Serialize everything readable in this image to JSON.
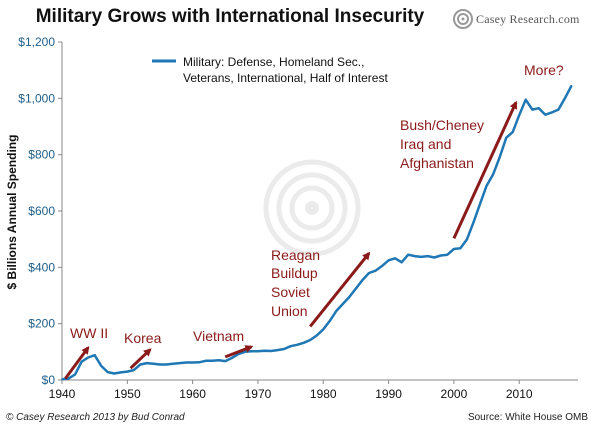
{
  "header": {
    "title": "Military Grows with International Insecurity",
    "brand": "Casey Research.com"
  },
  "footer": {
    "copyright": "© Casey Research 2013 by Bud Conrad",
    "source": "Source: White House OMB"
  },
  "colors": {
    "series": "#1f77b4",
    "annotation": "#8b1a1a",
    "axis_labels": "#1f5f8b"
  },
  "chart_data": {
    "type": "line",
    "title": "Military Grows with International Insecurity",
    "ylabel": "$ Billions Annual Spending",
    "xlabel": "",
    "xlim": [
      1940,
      2019
    ],
    "ylim": [
      0,
      1200
    ],
    "x_ticks": [
      1940,
      1950,
      1960,
      1970,
      1980,
      1990,
      2000,
      2010
    ],
    "y_ticks": [
      0,
      200,
      400,
      600,
      800,
      1000,
      1200
    ],
    "y_tick_labels": [
      "$0",
      "$200",
      "$400",
      "$600",
      "$800",
      "$1,000",
      "$1,200"
    ],
    "grid": false,
    "legend": {
      "position": "top-center",
      "entries": [
        "Military: Defense, Homeland Sec., Veterans, International, Half of Interest"
      ]
    },
    "series": [
      {
        "name": "Military: Defense, Homeland Sec., Veterans, International, Half of Interest",
        "x": [
          1940,
          1941,
          1942,
          1943,
          1944,
          1945,
          1946,
          1947,
          1948,
          1949,
          1950,
          1951,
          1952,
          1953,
          1954,
          1955,
          1956,
          1957,
          1958,
          1959,
          1960,
          1961,
          1962,
          1963,
          1964,
          1965,
          1966,
          1967,
          1968,
          1969,
          1970,
          1971,
          1972,
          1973,
          1974,
          1975,
          1976,
          1977,
          1978,
          1979,
          1980,
          1981,
          1982,
          1983,
          1984,
          1985,
          1986,
          1987,
          1988,
          1989,
          1990,
          1991,
          1992,
          1993,
          1994,
          1995,
          1996,
          1997,
          1998,
          1999,
          2000,
          2001,
          2002,
          2003,
          2004,
          2005,
          2006,
          2007,
          2008,
          2009,
          2010,
          2011,
          2012,
          2013,
          2014,
          2015,
          2016,
          2017,
          2018
        ],
        "values": [
          3,
          5,
          20,
          65,
          80,
          88,
          50,
          28,
          23,
          27,
          30,
          35,
          55,
          60,
          58,
          55,
          55,
          58,
          60,
          62,
          62,
          63,
          68,
          68,
          70,
          67,
          78,
          92,
          100,
          102,
          102,
          104,
          103,
          106,
          110,
          120,
          125,
          132,
          142,
          158,
          180,
          210,
          245,
          270,
          295,
          325,
          355,
          380,
          388,
          405,
          425,
          432,
          418,
          445,
          440,
          437,
          440,
          435,
          442,
          445,
          465,
          468,
          500,
          560,
          625,
          690,
          730,
          790,
          860,
          880,
          940,
          995,
          960,
          965,
          942,
          950,
          960,
          1000,
          1045
        ]
      }
    ],
    "annotations": [
      {
        "text": "WW II",
        "arrow": [
          [
            1940.5,
            5
          ],
          [
            1944,
            115
          ]
        ]
      },
      {
        "text": "Korea",
        "arrow": [
          [
            1950.5,
            42
          ],
          [
            1953.5,
            108
          ]
        ]
      },
      {
        "text": "Vietnam",
        "arrow": [
          [
            1965,
            82
          ],
          [
            1969,
            118
          ]
        ]
      },
      {
        "text": "Reagan",
        "arrow": [
          [
            1978,
            190
          ],
          [
            1987,
            450
          ]
        ]
      },
      {
        "text": "Buildup"
      },
      {
        "text": "Soviet"
      },
      {
        "text": "Union"
      },
      {
        "text": "Bush/Cheney",
        "arrow": [
          [
            2000,
            503
          ],
          [
            2009.5,
            985
          ]
        ]
      },
      {
        "text": "Iraq and"
      },
      {
        "text": "Afghanistan"
      },
      {
        "text": "More?"
      }
    ]
  }
}
